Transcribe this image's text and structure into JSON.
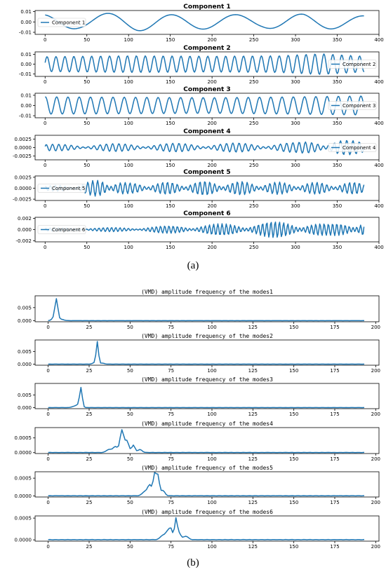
{
  "captions": {
    "a": "(a)",
    "b": "(b)"
  },
  "chart_data": [
    {
      "type": "line",
      "group": "a",
      "title": "Component 1",
      "legend": "Component 1",
      "legend_position": "left",
      "xlim": [
        -12,
        400
      ],
      "ylim": [
        -0.012,
        0.011
      ],
      "x_ticks": [
        0,
        50,
        100,
        150,
        200,
        250,
        300,
        350,
        400
      ],
      "y_ticks": [
        0.01,
        0.0,
        -0.01
      ],
      "y_tick_labels": [
        "0.01",
        "0.00",
        "-0.01"
      ],
      "n": 382,
      "signal": {
        "kind": "sum",
        "components": [
          {
            "amp": 0.0085,
            "period": 77,
            "phase": 1.75
          }
        ]
      },
      "envelope": [
        [
          0,
          0.9
        ],
        [
          40,
          0.75
        ],
        [
          110,
          1.0
        ],
        [
          200,
          0.8
        ],
        [
          260,
          0.65
        ],
        [
          310,
          1.0
        ],
        [
          382,
          0.6
        ]
      ],
      "offset": -0.0008
    },
    {
      "type": "line",
      "group": "a",
      "title": "Component 2",
      "legend": "Component 2",
      "legend_position": "right",
      "xlim": [
        -12,
        400
      ],
      "ylim": [
        -0.0125,
        0.0125
      ],
      "x_ticks": [
        0,
        50,
        100,
        150,
        200,
        250,
        300,
        350,
        400
      ],
      "y_ticks": [
        0.01,
        0.0,
        -0.01
      ],
      "y_tick_labels": [
        "0.01",
        "0.00",
        "-0.01"
      ],
      "n": 382,
      "signal": {
        "kind": "sum",
        "components": [
          {
            "amp": 0.0085,
            "period": 10.7,
            "phase": 0.2
          }
        ]
      },
      "envelope": [
        [
          0,
          0.9
        ],
        [
          100,
          1.0
        ],
        [
          200,
          0.95
        ],
        [
          280,
          1.0
        ],
        [
          330,
          1.25
        ],
        [
          382,
          0.95
        ]
      ]
    },
    {
      "type": "line",
      "group": "a",
      "title": "Component 3",
      "legend": "Component 3",
      "legend_position": "right",
      "xlim": [
        -12,
        400
      ],
      "ylim": [
        -0.012,
        0.012
      ],
      "x_ticks": [
        0,
        50,
        100,
        150,
        200,
        250,
        300,
        350,
        400
      ],
      "y_ticks": [
        0.01,
        0.0,
        -0.01
      ],
      "y_tick_labels": [
        "0.01",
        "0.00",
        "-0.01"
      ],
      "n": 382,
      "signal": {
        "kind": "sum",
        "components": [
          {
            "amp": 0.0085,
            "period": 13.5,
            "phase": 1.4
          }
        ]
      },
      "envelope": [
        [
          0,
          1.0
        ],
        [
          200,
          0.9
        ],
        [
          300,
          1.0
        ],
        [
          382,
          1.1
        ]
      ]
    },
    {
      "type": "line",
      "group": "a",
      "title": "Component 4",
      "legend": "Component 4",
      "legend_position": "right",
      "xlim": [
        -12,
        400
      ],
      "ylim": [
        -0.0036,
        0.0036
      ],
      "x_ticks": [
        0,
        50,
        100,
        150,
        200,
        250,
        300,
        350,
        400
      ],
      "y_ticks": [
        0.0025,
        0.0,
        -0.0025
      ],
      "y_tick_labels": [
        "0.0025",
        "0.0000",
        "-0.0025"
      ],
      "n": 382,
      "signal": {
        "kind": "sum",
        "components": [
          {
            "amp": 0.0007,
            "period": 7.2,
            "phase": 0.0
          },
          {
            "amp": 0.0005,
            "period": 8.0,
            "phase": 1.0
          }
        ]
      },
      "envelope": [
        [
          0,
          0.8
        ],
        [
          100,
          1.0
        ],
        [
          200,
          1.1
        ],
        [
          300,
          1.2
        ],
        [
          330,
          2.2
        ],
        [
          350,
          2.4
        ],
        [
          382,
          1.2
        ]
      ]
    },
    {
      "type": "line",
      "group": "a",
      "title": "Component 5",
      "legend": "Component 5",
      "legend_position": "left",
      "xlim": [
        -12,
        400
      ],
      "ylim": [
        -0.0028,
        0.0028
      ],
      "x_ticks": [
        0,
        50,
        100,
        150,
        200,
        250,
        300,
        350,
        400
      ],
      "y_ticks": [
        0.0025,
        0.0,
        -0.0025
      ],
      "y_tick_labels": [
        "0.0025",
        "0.0000",
        "-0.0025"
      ],
      "n": 382,
      "signal": {
        "kind": "sum",
        "components": [
          {
            "amp": 0.0009,
            "period": 5.6,
            "phase": 0.5
          },
          {
            "amp": 0.0006,
            "period": 6.4,
            "phase": 2.0
          }
        ]
      },
      "envelope": [
        [
          0,
          0.4
        ],
        [
          40,
          0.6
        ],
        [
          70,
          1.6
        ],
        [
          100,
          0.8
        ],
        [
          200,
          1.1
        ],
        [
          300,
          0.9
        ],
        [
          382,
          0.9
        ]
      ]
    },
    {
      "type": "line",
      "group": "a",
      "title": "Component 6",
      "legend": "Component 6",
      "legend_position": "left",
      "xlim": [
        -12,
        400
      ],
      "ylim": [
        -0.0022,
        0.0022
      ],
      "x_ticks": [
        0,
        50,
        100,
        150,
        200,
        250,
        300,
        350,
        400
      ],
      "y_ticks": [
        0.002,
        0.0,
        -0.002
      ],
      "y_tick_labels": [
        "0.002",
        "0.000",
        "-0.002"
      ],
      "n": 382,
      "signal": {
        "kind": "sum",
        "components": [
          {
            "amp": 0.0006,
            "period": 4.9,
            "phase": 0.0
          },
          {
            "amp": 0.0004,
            "period": 5.3,
            "phase": 1.3
          }
        ]
      },
      "envelope": [
        [
          0,
          0.3
        ],
        [
          100,
          0.4
        ],
        [
          200,
          1.0
        ],
        [
          250,
          1.3
        ],
        [
          300,
          1.6
        ],
        [
          340,
          1.0
        ],
        [
          382,
          2.1
        ]
      ]
    },
    {
      "type": "line",
      "group": "b",
      "title": "(VMD) amplitude frequency of the modes1",
      "xlim": [
        -8,
        202
      ],
      "ylim": [
        -0.0004,
        0.0095
      ],
      "x_ticks": [
        0,
        25,
        50,
        75,
        100,
        125,
        150,
        175,
        200
      ],
      "y_ticks": [
        0.005,
        0.0
      ],
      "y_tick_labels": [
        "0.005",
        "0.000"
      ],
      "n": 193,
      "signal": {
        "kind": "peaks",
        "baseline": 3e-05,
        "peaks": [
          {
            "at": 5,
            "height": 0.0082,
            "width": 0.9
          },
          {
            "at": 3,
            "height": 0.0008,
            "width": 1.0
          },
          {
            "at": 8,
            "height": 0.0005,
            "width": 1.5
          }
        ]
      }
    },
    {
      "type": "line",
      "group": "b",
      "title": "(VMD) amplitude frequency of the modes2",
      "xlim": [
        -8,
        202
      ],
      "ylim": [
        -0.0004,
        0.0095
      ],
      "x_ticks": [
        0,
        25,
        50,
        75,
        100,
        125,
        150,
        175,
        200
      ],
      "y_ticks": [
        0.005,
        0.0
      ],
      "y_tick_labels": [
        "0.005",
        "0.000"
      ],
      "n": 193,
      "signal": {
        "kind": "peaks",
        "baseline": 3e-05,
        "peaks": [
          {
            "at": 30,
            "height": 0.0088,
            "width": 0.7
          },
          {
            "at": 28,
            "height": 0.0005,
            "width": 1.0
          },
          {
            "at": 33,
            "height": 0.0004,
            "width": 1.2
          }
        ]
      }
    },
    {
      "type": "line",
      "group": "b",
      "title": "(VMD) amplitude frequency of the modes3",
      "xlim": [
        -8,
        202
      ],
      "ylim": [
        -0.0004,
        0.0095
      ],
      "x_ticks": [
        0,
        25,
        50,
        75,
        100,
        125,
        150,
        175,
        200
      ],
      "y_ticks": [
        0.005,
        0.0
      ],
      "y_tick_labels": [
        "0.005",
        "0.000"
      ],
      "n": 193,
      "signal": {
        "kind": "peaks",
        "baseline": 3e-05,
        "peaks": [
          {
            "at": 20,
            "height": 0.0078,
            "width": 0.8
          },
          {
            "at": 16,
            "height": 0.0005,
            "width": 1.5
          },
          {
            "at": 18,
            "height": 0.0008,
            "width": 1.0
          }
        ]
      }
    },
    {
      "type": "line",
      "group": "b",
      "title": "(VMD) amplitude frequency of the modes4",
      "xlim": [
        -8,
        202
      ],
      "ylim": [
        -3e-05,
        0.00085
      ],
      "x_ticks": [
        0,
        25,
        50,
        75,
        100,
        125,
        150,
        175,
        200
      ],
      "y_ticks": [
        0.0005,
        0.0
      ],
      "y_tick_labels": [
        "0.0005",
        "0.0000"
      ],
      "n": 193,
      "signal": {
        "kind": "peaks",
        "baseline": 5e-06,
        "peaks": [
          {
            "at": 45,
            "height": 0.00075,
            "width": 1.1
          },
          {
            "at": 48,
            "height": 0.0004,
            "width": 1.2
          },
          {
            "at": 41,
            "height": 0.0002,
            "width": 1.5
          },
          {
            "at": 52,
            "height": 0.00025,
            "width": 1.0
          },
          {
            "at": 37,
            "height": 0.0001,
            "width": 1.5
          },
          {
            "at": 56,
            "height": 0.0001,
            "width": 1.3
          }
        ]
      }
    },
    {
      "type": "line",
      "group": "b",
      "title": "(VMD) amplitude frequency of the modes5",
      "xlim": [
        -8,
        202
      ],
      "ylim": [
        -3e-05,
        0.00068
      ],
      "x_ticks": [
        0,
        25,
        50,
        75,
        100,
        125,
        150,
        175,
        200
      ],
      "y_ticks": [
        0.0005,
        0.0
      ],
      "y_tick_labels": [
        "0.0005",
        "0.0000"
      ],
      "n": 193,
      "signal": {
        "kind": "peaks",
        "baseline": 5e-06,
        "peaks": [
          {
            "at": 65,
            "height": 0.0006,
            "width": 0.9
          },
          {
            "at": 67,
            "height": 0.00055,
            "width": 0.9
          },
          {
            "at": 62,
            "height": 0.0003,
            "width": 1.2
          },
          {
            "at": 59,
            "height": 0.00012,
            "width": 1.5
          },
          {
            "at": 70,
            "height": 0.00015,
            "width": 1.2
          }
        ]
      }
    },
    {
      "type": "line",
      "group": "b",
      "title": "(VMD) amplitude frequency of the modes6",
      "xlim": [
        -8,
        202
      ],
      "ylim": [
        -3e-05,
        0.00055
      ],
      "x_ticks": [
        0,
        25,
        50,
        75,
        100,
        125,
        150,
        175,
        200
      ],
      "y_ticks": [
        0.0005,
        0.0
      ],
      "y_tick_labels": [
        "0.0005",
        "0.0000"
      ],
      "n": 193,
      "signal": {
        "kind": "peaks",
        "baseline": 5e-06,
        "peaks": [
          {
            "at": 78,
            "height": 0.00048,
            "width": 0.8
          },
          {
            "at": 75,
            "height": 0.00022,
            "width": 1.0
          },
          {
            "at": 73,
            "height": 0.00018,
            "width": 1.2
          },
          {
            "at": 80,
            "height": 0.00015,
            "width": 1.0
          },
          {
            "at": 70,
            "height": 0.0001,
            "width": 1.5
          },
          {
            "at": 84,
            "height": 8e-05,
            "width": 1.5
          }
        ]
      }
    }
  ]
}
